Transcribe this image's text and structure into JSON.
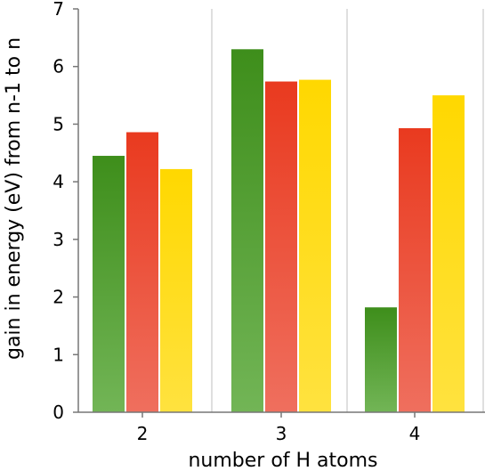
{
  "chart_data": {
    "type": "bar",
    "title": "",
    "xlabel": "number of H atoms",
    "ylabel": "gain in energy (eV) from n-1 to n",
    "categories": [
      "2",
      "3",
      "4"
    ],
    "ylim": [
      0,
      7
    ],
    "yticks": [
      0,
      1,
      2,
      3,
      4,
      5,
      6,
      7
    ],
    "grid": {
      "vertical_lines_between_groups": true,
      "horizontal": false
    },
    "series": [
      {
        "values": [
          4.45,
          6.3,
          1.82
        ],
        "color_top": "#3e8e1b",
        "color_bottom": "#72b556"
      },
      {
        "values": [
          4.86,
          5.74,
          4.93
        ],
        "color_top": "#e93a1f",
        "color_bottom": "#ef6f5e"
      },
      {
        "values": [
          4.22,
          5.77,
          5.5
        ],
        "color_top": "#ffd800",
        "color_bottom": "#ffe23f"
      }
    ],
    "colors": {
      "axis": "#777777",
      "grid": "#bfbfbf",
      "tick": "#000000"
    }
  }
}
